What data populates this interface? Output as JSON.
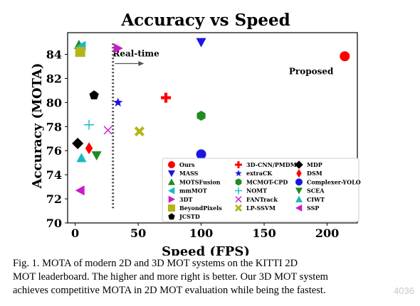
{
  "chart_data": {
    "type": "scatter",
    "title": "Accuracy vs Speed",
    "xlabel": "Speed (FPS)",
    "ylabel": "Accuracy (MOTA)",
    "xlim": [
      -6,
      224
    ],
    "ylim": [
      70,
      85.8
    ],
    "xticks": [
      0,
      50,
      100,
      150,
      200
    ],
    "yticks": [
      70,
      72,
      74,
      76,
      78,
      80,
      82,
      84
    ],
    "grid": false,
    "legend_position": "bottom-right",
    "annotations": [
      {
        "text": "Real-time",
        "x": 27,
        "y": 84
      },
      {
        "text": "Proposed",
        "x": 205,
        "y": 82.6
      }
    ],
    "vline": {
      "x": 30,
      "style": "dotted"
    },
    "series": [
      {
        "name": "Ours",
        "marker": "circle",
        "color": "#ff0000",
        "x": 214,
        "y": 83.84
      },
      {
        "name": "3DT",
        "marker": "triangle-right",
        "color": "#c71bc9",
        "x": 34,
        "y": 84.5
      },
      {
        "name": "MASS",
        "marker": "triangle-down",
        "color": "#1a16e0",
        "x": 100,
        "y": 85.0
      },
      {
        "name": "extraCK",
        "marker": "star",
        "color": "#1a16e0",
        "x": 34,
        "y": 80.0
      },
      {
        "name": "3D-CNN/PMDM",
        "marker": "plus",
        "color": "#ff0000",
        "x": 72,
        "y": 80.4
      },
      {
        "name": "MCMOT-CPD",
        "marker": "hexagon",
        "color": "#1f8c1f",
        "x": 100,
        "y": 78.9
      },
      {
        "name": "Complexer-YOLO",
        "marker": "circle",
        "color": "#1a16e0",
        "x": 100,
        "y": 75.7
      },
      {
        "name": "LP-SSVM",
        "marker": "x-thick",
        "color": "#b3b619",
        "x": 51,
        "y": 77.6
      },
      {
        "name": "NOMT",
        "marker": "plus-thin",
        "color": "#1bb9c2",
        "x": 11,
        "y": 78.15
      },
      {
        "name": "FANTrack",
        "marker": "x-thin",
        "color": "#c71bc9",
        "x": 26,
        "y": 77.7
      },
      {
        "name": "JCSTD",
        "marker": "pentagon",
        "color": "#000000",
        "x": 15,
        "y": 80.6
      },
      {
        "name": "MDP",
        "marker": "diamond-thick",
        "color": "#000000",
        "x": 2,
        "y": 76.6
      },
      {
        "name": "DSM",
        "marker": "diamond",
        "color": "#ff0000",
        "x": 11,
        "y": 76.2
      },
      {
        "name": "SCEA",
        "marker": "triangle-down",
        "color": "#1f8c1f",
        "x": 17,
        "y": 75.6
      },
      {
        "name": "CIWT",
        "marker": "triangle-up",
        "color": "#1bb9c2",
        "x": 5,
        "y": 75.4
      },
      {
        "name": "SSP",
        "marker": "triangle-left",
        "color": "#c71bc9",
        "x": 4,
        "y": 72.7
      },
      {
        "name": "MOTSFusion",
        "marker": "triangle-up",
        "color": "#1f8c1f",
        "x": 3,
        "y": 84.8
      },
      {
        "name": "mmMOT",
        "marker": "triangle-left",
        "color": "#1bb9c2",
        "x": 5,
        "y": 84.7
      },
      {
        "name": "BeyondPixels",
        "marker": "square",
        "color": "#b3b619",
        "x": 4,
        "y": 84.2
      }
    ],
    "legend_columns": [
      [
        "Ours",
        "MASS",
        "MOTSFusion",
        "mmMOT",
        "3DT",
        "BeyondPixels",
        "JCSTD"
      ],
      [
        "3D-CNN/PMDM",
        "extraCK",
        "MCMOT-CPD",
        "NOMT",
        "FANTrack",
        "LP-SSVM"
      ],
      [
        "MDP",
        "DSM",
        "Complexer-YOLO",
        "SCEA",
        "CIWT",
        "SSP"
      ]
    ]
  },
  "caption": {
    "line1": "Fig. 1.   MOTA of modern 2D and 3D MOT systems on the KITTI 2D",
    "line2": "MOT leaderboard. The higher and more right is better. Our 3D MOT system",
    "line3": "achieves competitive MOTA in 2D MOT evaluation while being the fastest."
  },
  "watermark": "4036"
}
